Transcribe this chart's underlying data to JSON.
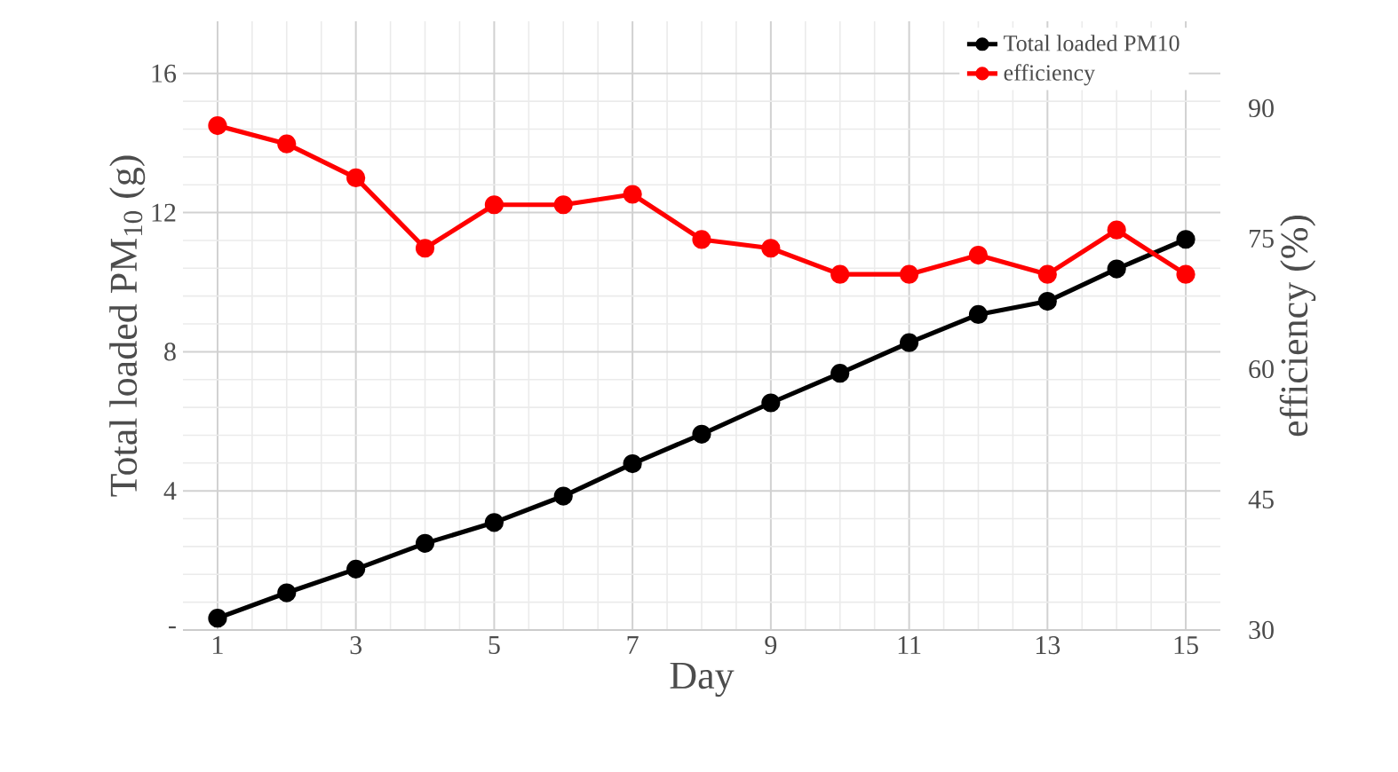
{
  "chart_data": {
    "type": "line",
    "xlabel": "Day",
    "ylabel": "Total loaded PM$_{10}$ (g)",
    "y2label": "efficiency  (%)",
    "x": [
      1,
      2,
      3,
      4,
      5,
      6,
      7,
      8,
      9,
      10,
      11,
      12,
      13,
      14,
      15
    ],
    "xlim": [
      0.5,
      15.5
    ],
    "xticks": [
      1,
      3,
      5,
      7,
      9,
      11,
      13,
      15
    ],
    "ylim": [
      0,
      17.5
    ],
    "yticks": [
      {
        "value": 0,
        "label": "-"
      },
      4,
      8,
      12,
      16
    ],
    "y2lim": [
      30,
      100
    ],
    "y2ticks": [
      30,
      45,
      60,
      75,
      90
    ],
    "series": [
      {
        "name": "Total loaded PM10",
        "color": "#000000",
        "values": [
          0.34,
          1.07,
          1.75,
          2.49,
          3.09,
          3.85,
          4.78,
          5.63,
          6.53,
          7.38,
          8.26,
          9.07,
          9.45,
          10.38,
          11.23
        ]
      },
      {
        "name": "efficiency",
        "color": "#ff0000",
        "axis": "y2",
        "values": [
          88.0,
          85.9,
          82.0,
          73.9,
          78.9,
          78.9,
          80.1,
          74.9,
          73.9,
          70.9,
          70.9,
          73.1,
          70.9,
          76.0,
          70.9
        ]
      }
    ],
    "grid": true,
    "legend": "top right",
    "marker": "circle",
    "line_style": "solid"
  }
}
